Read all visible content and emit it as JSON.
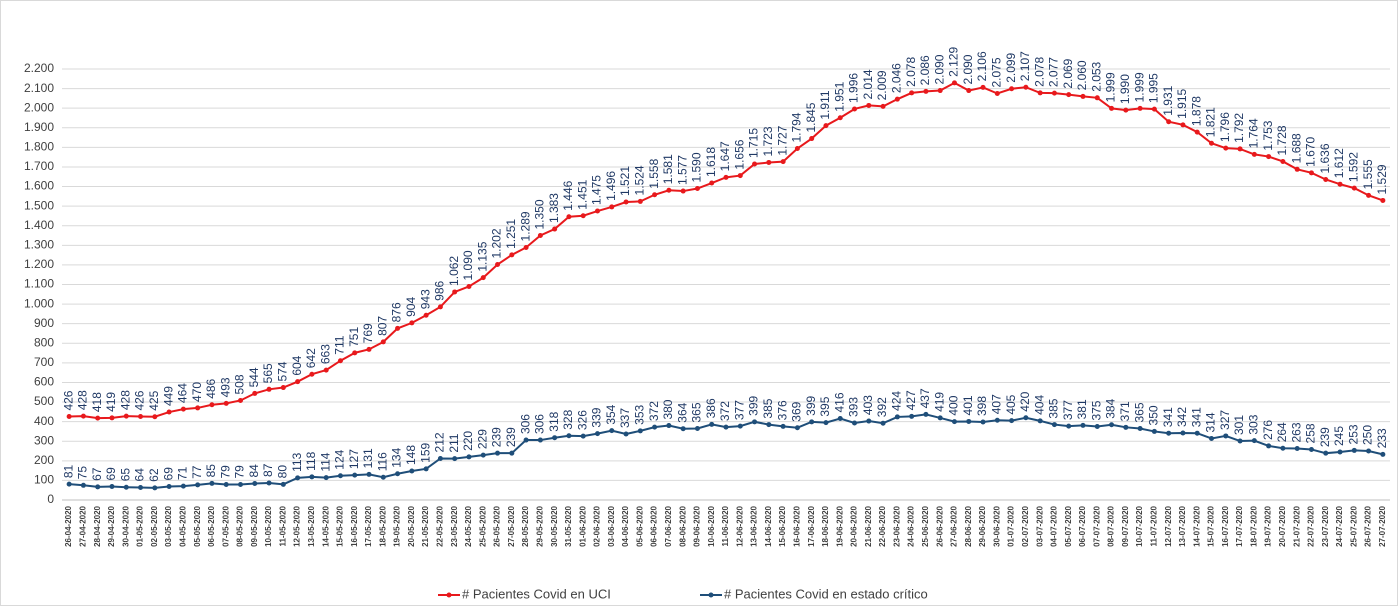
{
  "chart_data": {
    "type": "line",
    "x": [
      "26-04-2020",
      "27-04-2020",
      "28-04-2020",
      "29-04-2020",
      "30-04-2020",
      "01-05-2020",
      "02-05-2020",
      "03-05-2020",
      "04-05-2020",
      "05-05-2020",
      "06-05-2020",
      "07-05-2020",
      "08-05-2020",
      "09-05-2020",
      "10-05-2020",
      "11-05-2020",
      "12-05-2020",
      "13-05-2020",
      "14-05-2020",
      "15-05-2020",
      "16-05-2020",
      "17-05-2020",
      "18-05-2020",
      "19-05-2020",
      "20-05-2020",
      "21-05-2020",
      "22-05-2020",
      "23-05-2020",
      "24-05-2020",
      "25-05-2020",
      "26-05-2020",
      "27-05-2020",
      "28-05-2020",
      "29-05-2020",
      "30-05-2020",
      "31-05-2020",
      "01-06-2020",
      "02-06-2020",
      "03-06-2020",
      "04-06-2020",
      "05-06-2020",
      "06-06-2020",
      "07-06-2020",
      "08-06-2020",
      "09-06-2020",
      "10-06-2020",
      "11-06-2020",
      "12-06-2020",
      "13-06-2020",
      "14-06-2020",
      "15-06-2020",
      "16-06-2020",
      "17-06-2020",
      "18-06-2020",
      "19-06-2020",
      "20-06-2020",
      "21-06-2020",
      "22-06-2020",
      "23-06-2020",
      "24-06-2020",
      "25-06-2020",
      "26-06-2020",
      "27-06-2020",
      "28-06-2020",
      "29-06-2020",
      "30-06-2020",
      "01-07-2020",
      "02-07-2020",
      "03-07-2020",
      "04-07-2020",
      "05-07-2020",
      "06-07-2020",
      "07-07-2020",
      "08-07-2020",
      "09-07-2020",
      "10-07-2020",
      "11-07-2020",
      "12-07-2020",
      "13-07-2020",
      "14-07-2020",
      "15-07-2020",
      "16-07-2020",
      "17-07-2020",
      "18-07-2020",
      "19-07-2020",
      "20-07-2020",
      "21-07-2020",
      "22-07-2020",
      "23-07-2020",
      "24-07-2020",
      "25-07-2020",
      "26-07-2020",
      "27-07-2020"
    ],
    "series": [
      {
        "name": "# Pacientes Covid en UCI",
        "color": "#e8191c",
        "values": [
          426,
          428,
          418,
          419,
          428,
          426,
          425,
          449,
          464,
          470,
          486,
          493,
          508,
          544,
          565,
          574,
          604,
          642,
          663,
          711,
          751,
          769,
          807,
          876,
          904,
          943,
          986,
          1062,
          1090,
          1135,
          1202,
          1251,
          1289,
          1350,
          1383,
          1446,
          1451,
          1475,
          1496,
          1521,
          1524,
          1558,
          1581,
          1577,
          1590,
          1618,
          1647,
          1656,
          1715,
          1723,
          1727,
          1794,
          1845,
          1911,
          1951,
          1996,
          2014,
          2009,
          2046,
          2078,
          2086,
          2090,
          2129,
          2090,
          2106,
          2075,
          2099,
          2107,
          2078,
          2077,
          2069,
          2060,
          2053,
          1999,
          1990,
          1999,
          1995,
          1931,
          1915,
          1878,
          1821,
          1796,
          1792,
          1764,
          1753,
          1728,
          1688,
          1670,
          1636,
          1612,
          1592,
          1555,
          1529
        ],
        "value_labels": [
          "426",
          "428",
          "418",
          "419",
          "428",
          "426",
          "425",
          "449",
          "464",
          "470",
          "486",
          "493",
          "508",
          "544",
          "565",
          "574",
          "604",
          "642",
          "663",
          "711",
          "751",
          "769",
          "807",
          "876",
          "904",
          "943",
          "986",
          "1.062",
          "1.090",
          "1.135",
          "1.202",
          "1.251",
          "1.289",
          "1.350",
          "1.383",
          "1.446",
          "1.451",
          "1.475",
          "1.496",
          "1.521",
          "1.524",
          "1.558",
          "1.581",
          "1.577",
          "1.590",
          "1.618",
          "1.647",
          "1.656",
          "1.715",
          "1.723",
          "1.727",
          "1.794",
          "1.845",
          "1.911",
          "1.951",
          "1.996",
          "2.014",
          "2.009",
          "2.046",
          "2.078",
          "2.086",
          "2.090",
          "2.129",
          "2.090",
          "2.106",
          "2.075",
          "2.099",
          "2.107",
          "2.078",
          "2.077",
          "2.069",
          "2.060",
          "2.053",
          "1.999",
          "1.990",
          "1.999",
          "1.995",
          "1.931",
          "1.915",
          "1.878",
          "1.821",
          "1.796",
          "1.792",
          "1.764",
          "1.753",
          "1.728",
          "1.688",
          "1.670",
          "1.636",
          "1.612",
          "1.592",
          "1.555",
          "1.529"
        ]
      },
      {
        "name": "# Pacientes Covid en estado crítico",
        "color": "#1f4e79",
        "values": [
          81,
          75,
          67,
          69,
          65,
          64,
          62,
          69,
          71,
          77,
          85,
          79,
          79,
          84,
          87,
          80,
          113,
          118,
          114,
          124,
          127,
          131,
          116,
          134,
          148,
          159,
          212,
          211,
          220,
          229,
          239,
          239,
          306,
          306,
          318,
          328,
          326,
          339,
          354,
          337,
          353,
          372,
          380,
          364,
          365,
          386,
          372,
          377,
          399,
          385,
          376,
          369,
          399,
          395,
          416,
          393,
          403,
          392,
          424,
          427,
          437,
          419,
          400,
          401,
          398,
          407,
          405,
          420,
          404,
          385,
          377,
          381,
          375,
          384,
          371,
          365,
          350,
          341,
          342,
          341,
          314,
          327,
          301,
          303,
          276,
          264,
          263,
          258,
          239,
          245,
          253,
          250,
          233
        ]
      }
    ],
    "ylim": [
      0,
      2200
    ],
    "yticks": [
      0,
      100,
      200,
      300,
      400,
      500,
      600,
      700,
      800,
      900,
      {
        "value": 1000,
        "label": "1.000"
      },
      {
        "value": 1100,
        "label": "1.100"
      },
      {
        "value": 1200,
        "label": "1.200"
      },
      {
        "value": 1300,
        "label": "1.300"
      },
      {
        "value": 1400,
        "label": "1.400"
      },
      {
        "value": 1500,
        "label": "1.500"
      },
      {
        "value": 1600,
        "label": "1.600"
      },
      {
        "value": 1700,
        "label": "1.700"
      },
      {
        "value": 1800,
        "label": "1.800"
      },
      {
        "value": 1900,
        "label": "1.900"
      },
      {
        "value": 2000,
        "label": "2.000"
      },
      {
        "value": 2100,
        "label": "2.100"
      },
      {
        "value": 2200,
        "label": "2.200"
      }
    ],
    "grid": true,
    "legend": "bottom"
  }
}
